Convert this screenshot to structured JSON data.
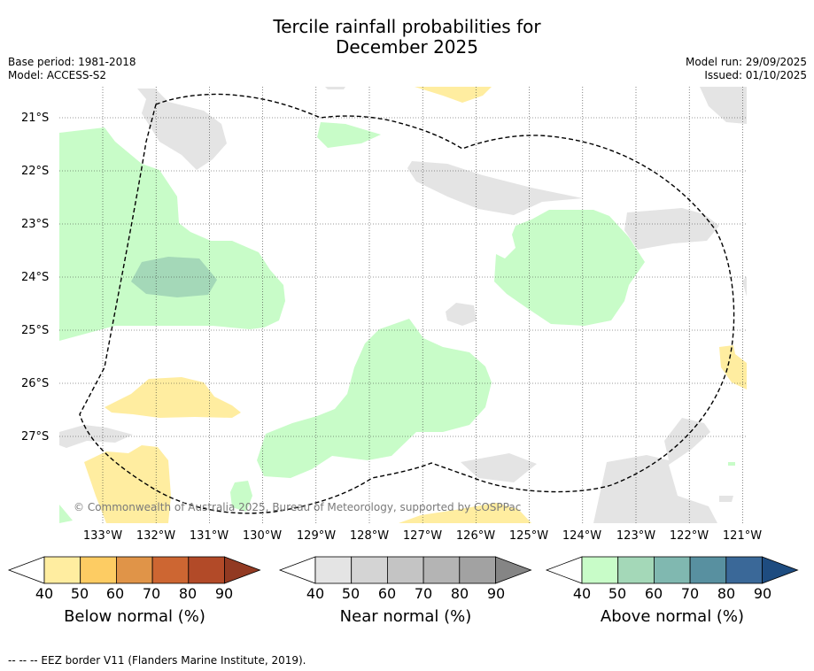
{
  "title_line1": "Tercile rainfall probabilities for",
  "title_line2": "December 2025",
  "base_period": "Base period: 1981-2018",
  "model": "Model: ACCESS-S2",
  "model_run": "Model run: 29/09/2025",
  "issued": "Issued: 01/10/2025",
  "lat_labels": [
    "21°S",
    "22°S",
    "23°S",
    "24°S",
    "25°S",
    "26°S",
    "27°S"
  ],
  "lon_labels": [
    "133°W",
    "132°W",
    "131°W",
    "130°W",
    "129°W",
    "128°W",
    "127°W",
    "126°W",
    "125°W",
    "124°W",
    "123°W",
    "122°W",
    "121°W"
  ],
  "copyright": "© Commonwealth of Australia 2025, Bureau of Meteorology, supported by COSPPac",
  "colorbars": {
    "below": {
      "label": "Below normal (%)",
      "ticks": [
        "40",
        "50",
        "60",
        "70",
        "80",
        "90"
      ],
      "colors": [
        "#ffffff",
        "#ffeda0",
        "#fdcc63",
        "#e09448",
        "#cd6632",
        "#b24a28",
        "#923a22"
      ]
    },
    "near": {
      "label": "Near normal (%)",
      "ticks": [
        "40",
        "50",
        "60",
        "70",
        "80",
        "90"
      ],
      "colors": [
        "#ffffff",
        "#e4e4e4",
        "#d4d4d4",
        "#c4c4c4",
        "#b4b4b4",
        "#a2a2a2",
        "#858585"
      ]
    },
    "above": {
      "label": "Above normal (%)",
      "ticks": [
        "40",
        "50",
        "60",
        "70",
        "80",
        "90"
      ],
      "colors": [
        "#ffffff",
        "#c8fcc8",
        "#a4d8b8",
        "#80b8b0",
        "#5890a0",
        "#3a6898",
        "#1e4c80"
      ]
    }
  },
  "footer": "--  --  -- EEZ border V11 (Flanders Marine Institute, 2019)."
}
